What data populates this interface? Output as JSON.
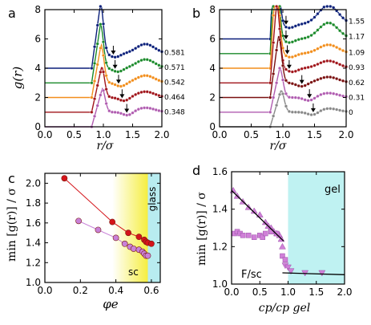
{
  "chart_data": [
    {
      "id": "a",
      "type": "line",
      "panel_label": "a",
      "xlabel": "r/σ",
      "ylabel": "g(r)",
      "xlim": [
        0,
        2.0
      ],
      "ylim": [
        0,
        8
      ],
      "xticks": [
        "0.0",
        "0.5",
        "1.0",
        "1.5",
        "2.0"
      ],
      "yticks": [
        "0",
        "2",
        "4",
        "6",
        "8"
      ],
      "series": [
        {
          "name": "0.581",
          "color": "#0a1f7a",
          "offset": 4,
          "peak": 3.4,
          "peakx": 0.95,
          "second": 0.65,
          "minx": 1.2,
          "arrowx": 1.17
        },
        {
          "name": "0.571",
          "color": "#1a8a2a",
          "offset": 3,
          "peak": 3.0,
          "peakx": 0.95,
          "second": 0.6,
          "minx": 1.25,
          "arrowx": 1.2
        },
        {
          "name": "0.542",
          "color": "#f28e1c",
          "offset": 2,
          "peak": 2.6,
          "peakx": 0.96,
          "second": 0.5,
          "minx": 1.3,
          "arrowx": 1.26
        },
        {
          "name": "0.464",
          "color": "#a0141a",
          "offset": 1,
          "peak": 2.1,
          "peakx": 0.97,
          "second": 0.4,
          "minx": 1.36,
          "arrowx": 1.32
        },
        {
          "name": "0.348",
          "color": "#b05cb0",
          "offset": 0,
          "peak": 1.6,
          "peakx": 0.98,
          "second": 0.3,
          "minx": 1.42,
          "arrowx": 1.4
        }
      ]
    },
    {
      "id": "b",
      "type": "line",
      "panel_label": "b",
      "xlabel": "r/σ",
      "ylabel": "",
      "xlim": [
        0,
        2.0
      ],
      "ylim": [
        0,
        8
      ],
      "xticks": [
        "0.0",
        "0.5",
        "1.0",
        "1.5",
        "2.0"
      ],
      "yticks": [
        "0",
        "2",
        "4",
        "6",
        "8"
      ],
      "series": [
        {
          "name": "1.55",
          "color": "#0a1f7a",
          "offset": 6,
          "peak": 7.0,
          "peakx": 0.88,
          "second": 1.3,
          "minx": 1.1,
          "arrowx": 1.05
        },
        {
          "name": "1.17",
          "color": "#1a8a2a",
          "offset": 5,
          "peak": 6.5,
          "peakx": 0.88,
          "second": 1.1,
          "minx": 1.1,
          "arrowx": 1.05
        },
        {
          "name": "1.09",
          "color": "#f28e1c",
          "offset": 4,
          "peak": 5.5,
          "peakx": 0.89,
          "second": 0.6,
          "minx": 1.12,
          "arrowx": 1.07
        },
        {
          "name": "0.93",
          "color": "#a0141a",
          "offset": 3,
          "peak": 4.5,
          "peakx": 0.9,
          "second": 0.5,
          "minx": 1.15,
          "arrowx": 1.1
        },
        {
          "name": "0.62",
          "color": "#7a1010",
          "offset": 2,
          "peak": 3.2,
          "peakx": 0.93,
          "second": 0.4,
          "minx": 1.3,
          "arrowx": 1.3
        },
        {
          "name": "0.31",
          "color": "#b05cb0",
          "offset": 1,
          "peak": 2.0,
          "peakx": 0.95,
          "second": 0.3,
          "minx": 1.42,
          "arrowx": 1.42
        },
        {
          "name": "0",
          "color": "#888888",
          "offset": 0,
          "peak": 1.5,
          "peakx": 0.97,
          "second": 0.25,
          "minx": 1.48,
          "arrowx": 1.48
        }
      ]
    },
    {
      "id": "c",
      "type": "scatter",
      "panel_label": "c",
      "xlabel": "φe",
      "ylabel": "min [g(r)] / σ",
      "xlim": [
        0.0,
        0.65
      ],
      "ylim": [
        1.0,
        2.1
      ],
      "xticks": [
        "0.0",
        "0.2",
        "0.4",
        "0.6"
      ],
      "yticks": [
        "1.0",
        "1.2",
        "1.4",
        "1.6",
        "1.8",
        "2.0"
      ],
      "region_labels": [
        "glass",
        "sc"
      ],
      "series": [
        {
          "name": "red",
          "color": "#d4141a",
          "x": [
            0.11,
            0.38,
            0.47,
            0.53,
            0.56,
            0.57,
            0.58,
            0.6
          ],
          "y": [
            2.05,
            1.61,
            1.5,
            1.46,
            1.43,
            1.41,
            1.4,
            1.39
          ]
        },
        {
          "name": "pink",
          "color": "#c880d8",
          "x": [
            0.19,
            0.3,
            0.4,
            0.45,
            0.48,
            0.5,
            0.53,
            0.55,
            0.56,
            0.57,
            0.58
          ],
          "y": [
            1.62,
            1.53,
            1.45,
            1.39,
            1.36,
            1.34,
            1.33,
            1.31,
            1.29,
            1.27,
            1.27
          ]
        }
      ]
    },
    {
      "id": "d",
      "type": "scatter",
      "panel_label": "d",
      "xlabel": "cp/cp gel",
      "ylabel": "min [g(r)] / σ",
      "xlim": [
        0.0,
        2.0
      ],
      "ylim": [
        1.0,
        1.6
      ],
      "xticks": [
        "0.0",
        "0.5",
        "1.0",
        "1.5",
        "2.0"
      ],
      "yticks": [
        "1.0",
        "1.2",
        "1.4",
        "1.6"
      ],
      "region_labels": [
        "gel",
        "F/sc"
      ],
      "series": [
        {
          "name": "up-triangles",
          "marker": "triangle-up",
          "color": "#d080d8",
          "x": [
            0.03,
            0.1,
            0.2,
            0.3,
            0.4,
            0.5,
            0.6,
            0.65,
            0.7,
            0.75,
            0.8,
            0.85,
            0.88,
            0.9
          ],
          "y": [
            1.5,
            1.47,
            1.44,
            1.41,
            1.39,
            1.37,
            1.33,
            1.31,
            1.3,
            1.28,
            1.27,
            1.26,
            1.24,
            1.2
          ]
        },
        {
          "name": "squares",
          "marker": "square",
          "color": "#d080d8",
          "x": [
            0.05,
            0.1,
            0.15,
            0.2,
            0.3,
            0.4,
            0.5,
            0.55,
            0.6,
            0.7,
            0.8,
            0.9,
            0.95
          ],
          "y": [
            1.27,
            1.28,
            1.27,
            1.26,
            1.26,
            1.25,
            1.26,
            1.25,
            1.27,
            1.28,
            1.27,
            1.15,
            1.13
          ]
        },
        {
          "name": "down-triangles",
          "marker": "triangle-down",
          "color": "#d080d8",
          "x": [
            0.95,
            1.0,
            1.05,
            1.3,
            1.6
          ],
          "y": [
            1.1,
            1.09,
            1.07,
            1.06,
            1.06
          ]
        }
      ],
      "fit_lines": [
        {
          "x": [
            0.0,
            0.92
          ],
          "y": [
            1.5,
            1.23
          ]
        },
        {
          "x": [
            0.9,
            2.0
          ],
          "y": [
            1.06,
            1.05
          ]
        }
      ]
    }
  ]
}
